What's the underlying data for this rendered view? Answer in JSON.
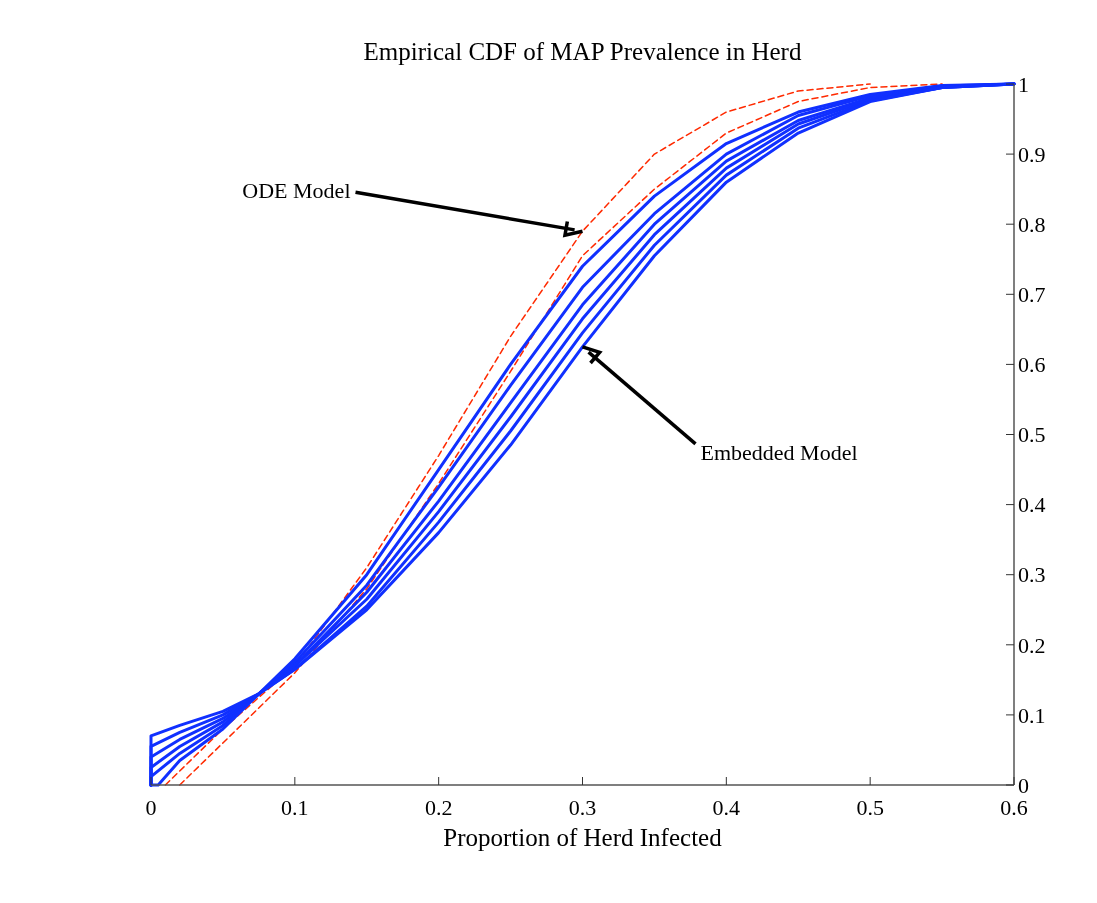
{
  "chart_data": {
    "type": "line",
    "title": "Empirical CDF of MAP Prevalence in Herd",
    "xlabel": "Proportion of Herd Infected",
    "xlim": [
      0,
      0.6
    ],
    "xticks": [
      0,
      0.1,
      0.2,
      0.3,
      0.4,
      0.5,
      0.6
    ],
    "ylim": [
      0,
      1
    ],
    "yticks": [
      0,
      0.1,
      0.2,
      0.3,
      0.4,
      0.5,
      0.6,
      0.7,
      0.8,
      0.9,
      1
    ],
    "grid": false,
    "annotations": [
      {
        "text": "ODE Model",
        "x": 0.3,
        "y": 0.79
      },
      {
        "text": "Embedded Model",
        "x": 0.3,
        "y": 0.625
      }
    ],
    "series": [
      {
        "color": "#ff2a00",
        "line_style": "dashed",
        "x": [
          0.01,
          0.05,
          0.1,
          0.15,
          0.2,
          0.25,
          0.3,
          0.35,
          0.4,
          0.45,
          0.5
        ],
        "values": [
          0,
          0.08,
          0.17,
          0.31,
          0.47,
          0.64,
          0.79,
          0.9,
          0.96,
          0.99,
          1
        ]
      },
      {
        "color": "#ff2a00",
        "line_style": "dashed",
        "x": [
          0.02,
          0.05,
          0.1,
          0.15,
          0.2,
          0.25,
          0.3,
          0.35,
          0.4,
          0.45,
          0.5,
          0.55
        ],
        "values": [
          0,
          0.06,
          0.16,
          0.28,
          0.43,
          0.59,
          0.755,
          0.85,
          0.93,
          0.975,
          0.995,
          1
        ]
      },
      {
        "color": "#1030ff",
        "line_style": "solid",
        "x": [
          0,
          0,
          0.02,
          0.05,
          0.075,
          0.1,
          0.15,
          0.2,
          0.25,
          0.3,
          0.35,
          0.4,
          0.45,
          0.5,
          0.55,
          0.6
        ],
        "values": [
          0,
          0.07,
          0.085,
          0.105,
          0.13,
          0.18,
          0.3,
          0.45,
          0.6,
          0.74,
          0.84,
          0.915,
          0.96,
          0.985,
          0.998,
          1
        ]
      },
      {
        "color": "#1030ff",
        "line_style": "solid",
        "x": [
          0,
          0,
          0.02,
          0.05,
          0.075,
          0.1,
          0.15,
          0.2,
          0.25,
          0.3,
          0.35,
          0.4,
          0.45,
          0.5,
          0.55,
          0.6
        ],
        "values": [
          0,
          0.055,
          0.075,
          0.1,
          0.13,
          0.175,
          0.285,
          0.425,
          0.57,
          0.71,
          0.815,
          0.9,
          0.955,
          0.983,
          0.997,
          1
        ]
      },
      {
        "color": "#1030ff",
        "line_style": "solid",
        "x": [
          0,
          0,
          0.02,
          0.05,
          0.075,
          0.1,
          0.15,
          0.2,
          0.25,
          0.3,
          0.35,
          0.4,
          0.45,
          0.5,
          0.55,
          0.6
        ],
        "values": [
          0,
          0.04,
          0.065,
          0.095,
          0.13,
          0.17,
          0.275,
          0.405,
          0.545,
          0.685,
          0.8,
          0.89,
          0.948,
          0.98,
          0.996,
          1
        ]
      },
      {
        "color": "#1030ff",
        "line_style": "solid",
        "x": [
          0,
          0,
          0.02,
          0.05,
          0.075,
          0.1,
          0.15,
          0.2,
          0.25,
          0.3,
          0.35,
          0.4,
          0.45,
          0.5,
          0.55,
          0.6
        ],
        "values": [
          0,
          0.025,
          0.055,
          0.09,
          0.13,
          0.17,
          0.265,
          0.39,
          0.525,
          0.665,
          0.785,
          0.88,
          0.943,
          0.978,
          0.995,
          1
        ]
      },
      {
        "color": "#1030ff",
        "line_style": "solid",
        "x": [
          0,
          0,
          0.02,
          0.05,
          0.075,
          0.1,
          0.15,
          0.2,
          0.25,
          0.3,
          0.35,
          0.4,
          0.45,
          0.5,
          0.55,
          0.6
        ],
        "values": [
          0,
          0.012,
          0.045,
          0.085,
          0.13,
          0.165,
          0.255,
          0.375,
          0.505,
          0.645,
          0.77,
          0.87,
          0.937,
          0.976,
          0.995,
          1
        ]
      },
      {
        "color": "#1030ff",
        "line_style": "solid",
        "x": [
          0,
          0.005,
          0.02,
          0.05,
          0.075,
          0.1,
          0.15,
          0.2,
          0.25,
          0.3,
          0.35,
          0.4,
          0.45,
          0.5,
          0.55,
          0.6
        ],
        "values": [
          0,
          0,
          0.035,
          0.08,
          0.13,
          0.165,
          0.25,
          0.36,
          0.485,
          0.625,
          0.755,
          0.86,
          0.93,
          0.975,
          0.995,
          1
        ]
      }
    ]
  }
}
